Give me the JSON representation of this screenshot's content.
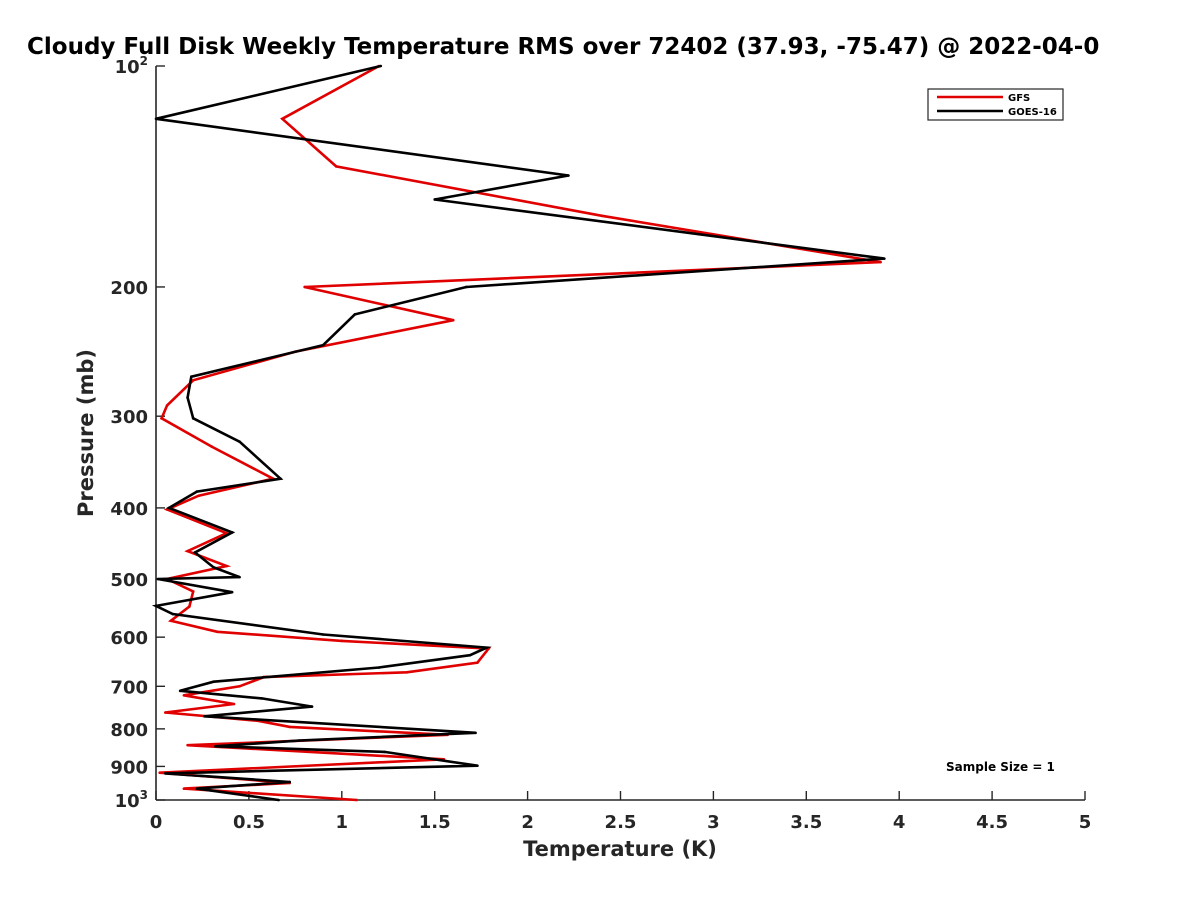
{
  "chart_data": {
    "type": "line",
    "title": "Cloudy Full Disk Weekly Temperature RMS over 72402 (37.93, -75.47) @ 2022-04-0",
    "xlabel": "Temperature (K)",
    "ylabel": "Pressure (mb)",
    "xlim": [
      0,
      5
    ],
    "ylim": [
      100,
      1000
    ],
    "y_scale": "log",
    "y_reversed": true,
    "x_ticks": [
      "0",
      "0.5",
      "1",
      "1.5",
      "2",
      "2.5",
      "3",
      "3.5",
      "4",
      "4.5",
      "5"
    ],
    "y_ticks": [
      {
        "value": 100,
        "base": "10",
        "exp": "2"
      },
      {
        "value": 200,
        "label": "200"
      },
      {
        "value": 300,
        "label": "300"
      },
      {
        "value": 400,
        "label": "400"
      },
      {
        "value": 500,
        "label": "500"
      },
      {
        "value": 600,
        "label": "600"
      },
      {
        "value": 700,
        "label": "700"
      },
      {
        "value": 800,
        "label": "800"
      },
      {
        "value": 900,
        "label": "900"
      },
      {
        "value": 1000,
        "base": "10",
        "exp": "3"
      }
    ],
    "legend_position": "top-right",
    "series": [
      {
        "name": "GFS",
        "color": "#e00000",
        "x": [
          1.2,
          0.68,
          0.97,
          2.4,
          3.9,
          0.8,
          1.6,
          0.75,
          0.2,
          0.06,
          0.03,
          0.3,
          0.63,
          0.23,
          0.06,
          0.38,
          0.17,
          0.38,
          0.06,
          0.2,
          0.18,
          0.08,
          0.33,
          1.0,
          1.79,
          1.73,
          1.35,
          0.58,
          0.45,
          0.15,
          0.42,
          0.05,
          0.55,
          0.72,
          1.57,
          0.17,
          1.55,
          0.02,
          0.72,
          0.15,
          1.08
        ],
        "y": [
          100,
          118,
          137,
          160,
          185,
          200,
          222,
          245,
          268,
          290,
          302,
          330,
          365,
          385,
          402,
          433,
          458,
          480,
          500,
          520,
          545,
          570,
          590,
          607,
          622,
          650,
          670,
          680,
          700,
          720,
          740,
          760,
          780,
          795,
          815,
          842,
          880,
          918,
          948,
          965,
          1000
        ]
      },
      {
        "name": "GOES-16",
        "color": "#000000",
        "x": [
          1.21,
          0.0,
          2.22,
          1.5,
          3.92,
          1.67,
          1.07,
          0.9,
          0.19,
          0.17,
          0.2,
          0.45,
          0.67,
          0.22,
          0.07,
          0.41,
          0.21,
          0.31,
          0.45,
          0.01,
          0.41,
          0.0,
          0.09,
          0.9,
          1.78,
          1.69,
          1.2,
          0.31,
          0.13,
          0.57,
          0.84,
          0.26,
          1.72,
          0.77,
          0.32,
          1.23,
          1.73,
          0.05,
          0.72,
          0.22,
          0.66
        ],
        "y": [
          100,
          118,
          141,
          152,
          183,
          200,
          218,
          240,
          265,
          283,
          302,
          325,
          365,
          380,
          400,
          432,
          460,
          482,
          497,
          500,
          521,
          544,
          558,
          595,
          620,
          635,
          660,
          690,
          710,
          727,
          746,
          769,
          810,
          830,
          845,
          860,
          898,
          920,
          945,
          965,
          1000
        ]
      }
    ],
    "annotation": "Sample Size = 1"
  }
}
